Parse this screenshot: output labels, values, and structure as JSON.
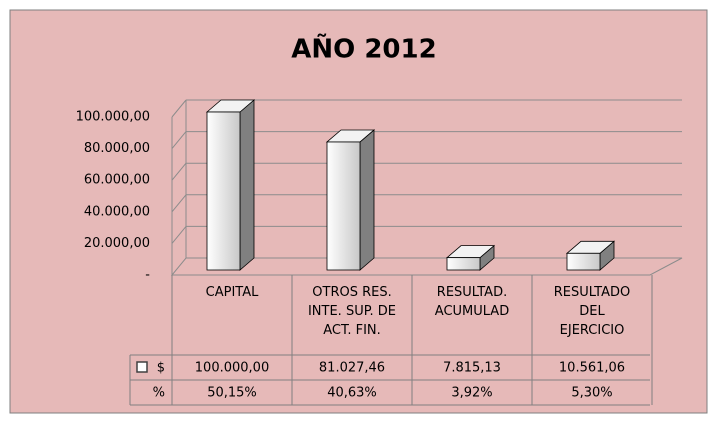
{
  "chart_data": {
    "type": "bar",
    "title": "AÑO 2012",
    "categories": [
      "CAPITAL",
      "OTROS RES. INTE. SUP. DE ACT. FIN.",
      "RESULTAD. ACUMULAD",
      "RESULTADO DEL EJERCICIO"
    ],
    "series": [
      {
        "name": "$",
        "color": "#e0e0e0",
        "values": [
          100000,
          81027.46,
          7815.13,
          10561.06
        ],
        "value_labels": [
          "100.000,00",
          "81.027,46",
          "7.815,13",
          "10.561,06"
        ]
      }
    ],
    "percent_row": {
      "name": "%",
      "values": [
        50.15,
        40.63,
        3.92,
        5.3
      ],
      "value_labels": [
        "50,15%",
        "40,63%",
        "3,92%",
        "5,30%"
      ]
    },
    "ylim": [
      0,
      100000
    ],
    "yticks": [
      {
        "value": 0,
        "label": "-"
      },
      {
        "value": 20000,
        "label": "20.000,00"
      },
      {
        "value": 40000,
        "label": "40.000,00"
      },
      {
        "value": 60000,
        "label": "60.000,00"
      },
      {
        "value": 80000,
        "label": "80.000,00"
      },
      {
        "value": 100000,
        "label": "100.000,00"
      }
    ],
    "grid": true
  }
}
